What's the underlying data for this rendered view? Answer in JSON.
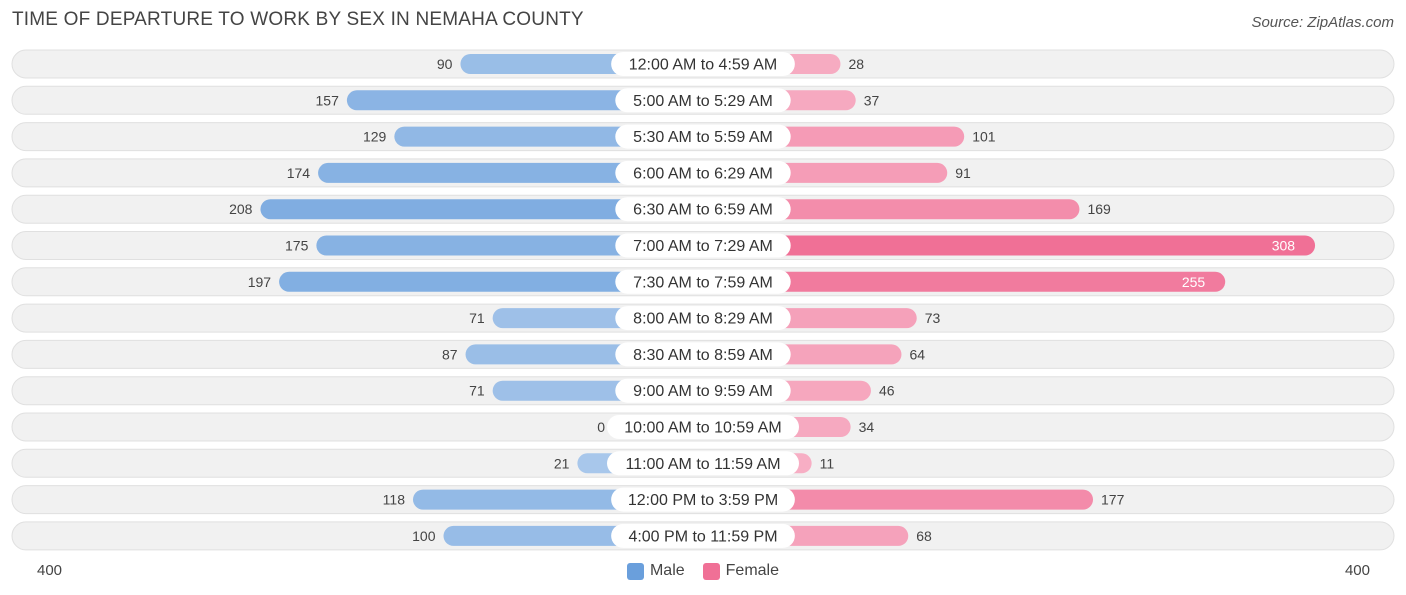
{
  "title": "TIME OF DEPARTURE TO WORK BY SEX IN NEMAHA COUNTY",
  "source": "Source: ZipAtlas.com",
  "colors": {
    "male": "#6a9fdc",
    "female": "#f07096",
    "row_bg": "#f1f1f1"
  },
  "legend": {
    "male": "Male",
    "female": "Female"
  },
  "axis": {
    "left_label": "400",
    "right_label": "400"
  },
  "chart_data": {
    "type": "bar",
    "orientation": "horizontal-diverging",
    "categories": [
      "12:00 AM to 4:59 AM",
      "5:00 AM to 5:29 AM",
      "5:30 AM to 5:59 AM",
      "6:00 AM to 6:29 AM",
      "6:30 AM to 6:59 AM",
      "7:00 AM to 7:29 AM",
      "7:30 AM to 7:59 AM",
      "8:00 AM to 8:29 AM",
      "8:30 AM to 8:59 AM",
      "9:00 AM to 9:59 AM",
      "10:00 AM to 10:59 AM",
      "11:00 AM to 11:59 AM",
      "12:00 PM to 3:59 PM",
      "4:00 PM to 11:59 PM"
    ],
    "series": [
      {
        "name": "Male",
        "values": [
          90,
          157,
          129,
          174,
          208,
          175,
          197,
          71,
          87,
          71,
          0,
          21,
          118,
          100
        ]
      },
      {
        "name": "Female",
        "values": [
          28,
          37,
          101,
          91,
          169,
          308,
          255,
          73,
          64,
          46,
          34,
          11,
          177,
          68
        ]
      }
    ],
    "xlim": [
      -400,
      400
    ]
  }
}
